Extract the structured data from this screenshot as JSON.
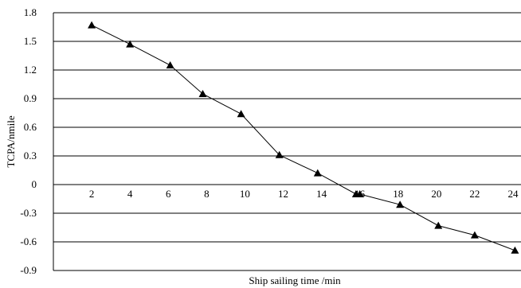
{
  "chart_data": {
    "type": "line",
    "xlabel": "Ship sailing time /min",
    "ylabel": "TCPA/nmile",
    "xlim": [
      0,
      24
    ],
    "ylim": [
      -0.9,
      1.8
    ],
    "y_ticks": [
      "1.8",
      "1.5",
      "1.2",
      "0.9",
      "0.6",
      "0.3",
      "0",
      "-0.3",
      "-0.6",
      "-0.9"
    ],
    "x_ticks": [
      "2",
      "4",
      "6",
      "8",
      "10",
      "12",
      "14",
      "16",
      "18",
      "20",
      "22",
      "24"
    ],
    "grid": true,
    "marker": "triangle",
    "x": [
      2,
      4,
      6.1,
      7.8,
      9.8,
      11.8,
      13.8,
      15.8,
      16,
      18.1,
      20.1,
      22,
      24.1
    ],
    "y": [
      1.67,
      1.47,
      1.25,
      0.95,
      0.74,
      0.31,
      0.12,
      -0.1,
      -0.1,
      -0.21,
      -0.43,
      -0.53,
      -0.69
    ]
  }
}
